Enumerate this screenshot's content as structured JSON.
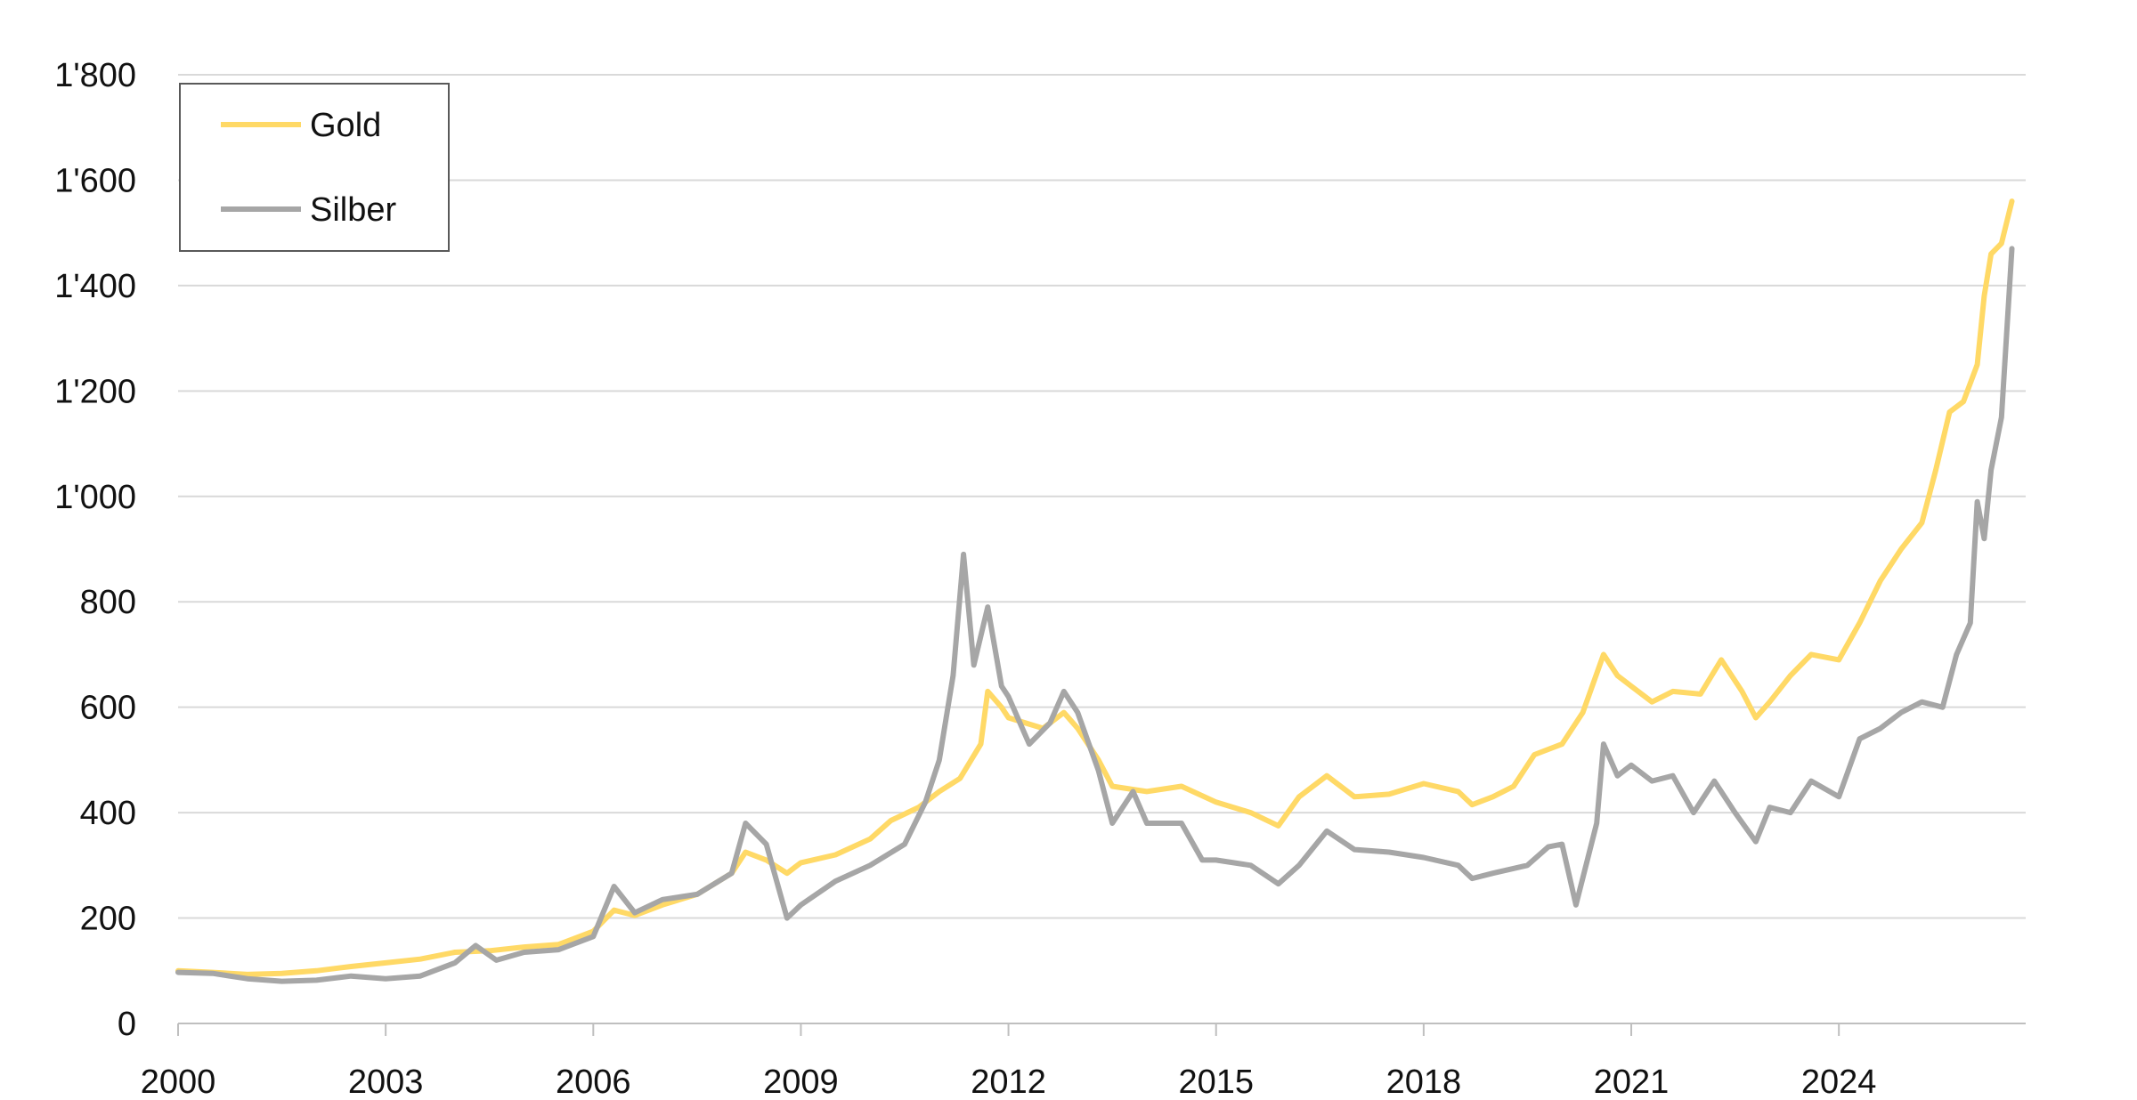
{
  "chart_data": {
    "type": "line",
    "title": "",
    "xlabel": "",
    "ylabel": "",
    "xlim": [
      2000,
      2026.7
    ],
    "ylim": [
      0,
      1800
    ],
    "x_ticks": [
      2000,
      2003,
      2006,
      2009,
      2012,
      2015,
      2018,
      2021,
      2024
    ],
    "x_tick_labels": [
      "2000",
      "2003",
      "2006",
      "2009",
      "2012",
      "2015",
      "2018",
      "2021",
      "2024"
    ],
    "y_ticks": [
      0,
      200,
      400,
      600,
      800,
      1000,
      1200,
      1400,
      1600,
      1800
    ],
    "y_tick_labels": [
      "0",
      "200",
      "400",
      "600",
      "800",
      "1'000",
      "1'200",
      "1'400",
      "1'600",
      "1'800"
    ],
    "grid": "horizontal",
    "legend_position": "top-left",
    "series": [
      {
        "name": "Gold",
        "color": "#FFD966",
        "points": [
          [
            2000.0,
            100
          ],
          [
            2000.5,
            97
          ],
          [
            2001.0,
            93
          ],
          [
            2001.5,
            95
          ],
          [
            2002.0,
            100
          ],
          [
            2002.5,
            108
          ],
          [
            2003.0,
            115
          ],
          [
            2003.5,
            122
          ],
          [
            2004.0,
            135
          ],
          [
            2004.5,
            138
          ],
          [
            2005.0,
            145
          ],
          [
            2005.5,
            150
          ],
          [
            2006.0,
            175
          ],
          [
            2006.3,
            215
          ],
          [
            2006.6,
            205
          ],
          [
            2007.0,
            225
          ],
          [
            2007.5,
            245
          ],
          [
            2008.0,
            285
          ],
          [
            2008.2,
            325
          ],
          [
            2008.5,
            310
          ],
          [
            2008.8,
            285
          ],
          [
            2009.0,
            305
          ],
          [
            2009.5,
            320
          ],
          [
            2010.0,
            350
          ],
          [
            2010.3,
            385
          ],
          [
            2010.7,
            410
          ],
          [
            2011.0,
            440
          ],
          [
            2011.3,
            465
          ],
          [
            2011.6,
            530
          ],
          [
            2011.7,
            630
          ],
          [
            2011.9,
            600
          ],
          [
            2012.0,
            580
          ],
          [
            2012.5,
            560
          ],
          [
            2012.8,
            590
          ],
          [
            2013.0,
            560
          ],
          [
            2013.3,
            500
          ],
          [
            2013.5,
            450
          ],
          [
            2014.0,
            440
          ],
          [
            2014.5,
            450
          ],
          [
            2015.0,
            420
          ],
          [
            2015.5,
            400
          ],
          [
            2015.9,
            375
          ],
          [
            2016.2,
            430
          ],
          [
            2016.6,
            470
          ],
          [
            2017.0,
            430
          ],
          [
            2017.5,
            435
          ],
          [
            2018.0,
            455
          ],
          [
            2018.5,
            440
          ],
          [
            2018.7,
            415
          ],
          [
            2019.0,
            430
          ],
          [
            2019.3,
            450
          ],
          [
            2019.6,
            510
          ],
          [
            2020.0,
            530
          ],
          [
            2020.3,
            590
          ],
          [
            2020.6,
            700
          ],
          [
            2020.8,
            660
          ],
          [
            2021.0,
            640
          ],
          [
            2021.3,
            610
          ],
          [
            2021.6,
            630
          ],
          [
            2022.0,
            625
          ],
          [
            2022.3,
            690
          ],
          [
            2022.6,
            630
          ],
          [
            2022.8,
            580
          ],
          [
            2023.0,
            610
          ],
          [
            2023.3,
            660
          ],
          [
            2023.6,
            700
          ],
          [
            2024.0,
            690
          ],
          [
            2024.3,
            760
          ],
          [
            2024.6,
            840
          ],
          [
            2024.9,
            900
          ],
          [
            2025.2,
            950
          ],
          [
            2025.4,
            1050
          ],
          [
            2025.6,
            1160
          ],
          [
            2025.8,
            1180
          ],
          [
            2026.0,
            1250
          ],
          [
            2026.1,
            1380
          ],
          [
            2026.2,
            1460
          ],
          [
            2026.35,
            1480
          ],
          [
            2026.5,
            1560
          ]
        ]
      },
      {
        "name": "Silber",
        "color": "#A6A6A6",
        "points": [
          [
            2000.0,
            97
          ],
          [
            2000.5,
            95
          ],
          [
            2001.0,
            85
          ],
          [
            2001.5,
            80
          ],
          [
            2002.0,
            82
          ],
          [
            2002.5,
            90
          ],
          [
            2003.0,
            85
          ],
          [
            2003.5,
            90
          ],
          [
            2004.0,
            115
          ],
          [
            2004.3,
            148
          ],
          [
            2004.6,
            120
          ],
          [
            2005.0,
            135
          ],
          [
            2005.5,
            140
          ],
          [
            2006.0,
            165
          ],
          [
            2006.3,
            260
          ],
          [
            2006.6,
            210
          ],
          [
            2007.0,
            235
          ],
          [
            2007.5,
            245
          ],
          [
            2008.0,
            285
          ],
          [
            2008.2,
            380
          ],
          [
            2008.5,
            340
          ],
          [
            2008.8,
            200
          ],
          [
            2009.0,
            225
          ],
          [
            2009.5,
            270
          ],
          [
            2010.0,
            300
          ],
          [
            2010.5,
            340
          ],
          [
            2010.8,
            420
          ],
          [
            2011.0,
            500
          ],
          [
            2011.2,
            660
          ],
          [
            2011.35,
            890
          ],
          [
            2011.5,
            680
          ],
          [
            2011.7,
            790
          ],
          [
            2011.9,
            640
          ],
          [
            2012.0,
            620
          ],
          [
            2012.3,
            530
          ],
          [
            2012.6,
            570
          ],
          [
            2012.8,
            630
          ],
          [
            2013.0,
            590
          ],
          [
            2013.3,
            480
          ],
          [
            2013.5,
            380
          ],
          [
            2013.8,
            440
          ],
          [
            2014.0,
            380
          ],
          [
            2014.5,
            380
          ],
          [
            2014.8,
            310
          ],
          [
            2015.0,
            310
          ],
          [
            2015.5,
            300
          ],
          [
            2015.9,
            265
          ],
          [
            2016.2,
            300
          ],
          [
            2016.6,
            365
          ],
          [
            2017.0,
            330
          ],
          [
            2017.5,
            325
          ],
          [
            2018.0,
            315
          ],
          [
            2018.5,
            300
          ],
          [
            2018.7,
            275
          ],
          [
            2019.0,
            285
          ],
          [
            2019.5,
            300
          ],
          [
            2019.8,
            335
          ],
          [
            2020.0,
            340
          ],
          [
            2020.2,
            225
          ],
          [
            2020.5,
            380
          ],
          [
            2020.6,
            530
          ],
          [
            2020.8,
            470
          ],
          [
            2021.0,
            490
          ],
          [
            2021.3,
            460
          ],
          [
            2021.6,
            470
          ],
          [
            2021.9,
            400
          ],
          [
            2022.2,
            460
          ],
          [
            2022.5,
            400
          ],
          [
            2022.8,
            345
          ],
          [
            2023.0,
            410
          ],
          [
            2023.3,
            400
          ],
          [
            2023.6,
            460
          ],
          [
            2024.0,
            430
          ],
          [
            2024.3,
            540
          ],
          [
            2024.6,
            560
          ],
          [
            2024.9,
            590
          ],
          [
            2025.2,
            610
          ],
          [
            2025.5,
            600
          ],
          [
            2025.7,
            700
          ],
          [
            2025.9,
            760
          ],
          [
            2026.0,
            990
          ],
          [
            2026.1,
            920
          ],
          [
            2026.2,
            1050
          ],
          [
            2026.35,
            1150
          ],
          [
            2026.5,
            1470
          ]
        ]
      }
    ]
  }
}
